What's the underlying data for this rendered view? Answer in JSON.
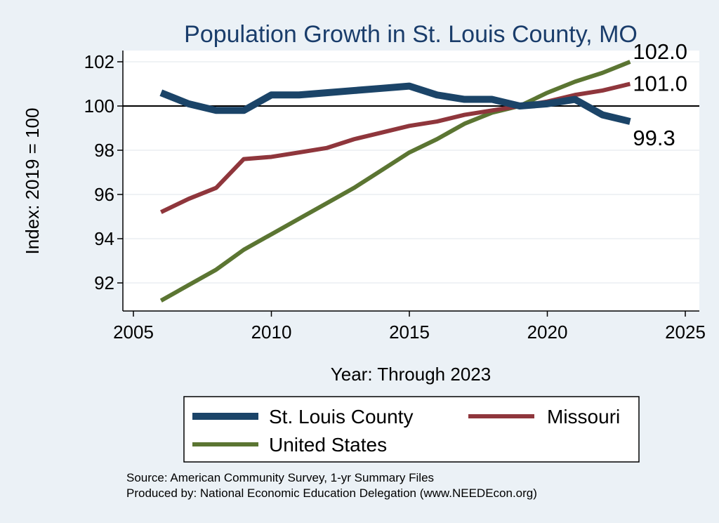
{
  "chart_data": {
    "type": "line",
    "title": "Population Growth in St. Louis County, MO",
    "xlabel": "Year: Through 2023",
    "ylabel": "Index: 2019 = 100",
    "xlim": [
      2005,
      2025
    ],
    "ylim": [
      90.8,
      102.6
    ],
    "xticks": [
      2005,
      2010,
      2015,
      2020,
      2025
    ],
    "yticks": [
      92,
      94,
      96,
      98,
      100,
      102
    ],
    "reference_line": 100,
    "grid": true,
    "legend_position": "bottom",
    "x": [
      2006,
      2007,
      2008,
      2009,
      2010,
      2011,
      2012,
      2013,
      2014,
      2015,
      2016,
      2017,
      2018,
      2019,
      2020,
      2021,
      2022,
      2023
    ],
    "series": [
      {
        "name": "St. Louis  County",
        "color": "#1b4468",
        "values": [
          100.6,
          100.1,
          99.8,
          99.8,
          100.5,
          100.5,
          100.6,
          100.7,
          100.8,
          100.9,
          100.5,
          100.3,
          100.3,
          100.0,
          100.1,
          100.3,
          99.6,
          99.3
        ],
        "end_label": "99.3"
      },
      {
        "name": "Missouri",
        "color": "#8f363c",
        "values": [
          95.2,
          95.8,
          96.3,
          97.6,
          97.7,
          97.9,
          98.1,
          98.5,
          98.8,
          99.1,
          99.3,
          99.6,
          99.8,
          100.0,
          100.2,
          100.5,
          100.7,
          101.0
        ],
        "end_label": "101.0"
      },
      {
        "name": "United States",
        "color": "#5b7532",
        "values": [
          91.2,
          91.9,
          92.6,
          93.5,
          94.2,
          94.9,
          95.6,
          96.3,
          97.1,
          97.9,
          98.5,
          99.2,
          99.7,
          100.0,
          100.6,
          101.1,
          101.5,
          102.0
        ],
        "end_label": "102.0"
      }
    ],
    "source_note": "Source: American Community Survey, 1-yr Summary Files",
    "producer_note": "Produced by: National Economic Education Delegation (www.NEEDEcon.org)"
  }
}
